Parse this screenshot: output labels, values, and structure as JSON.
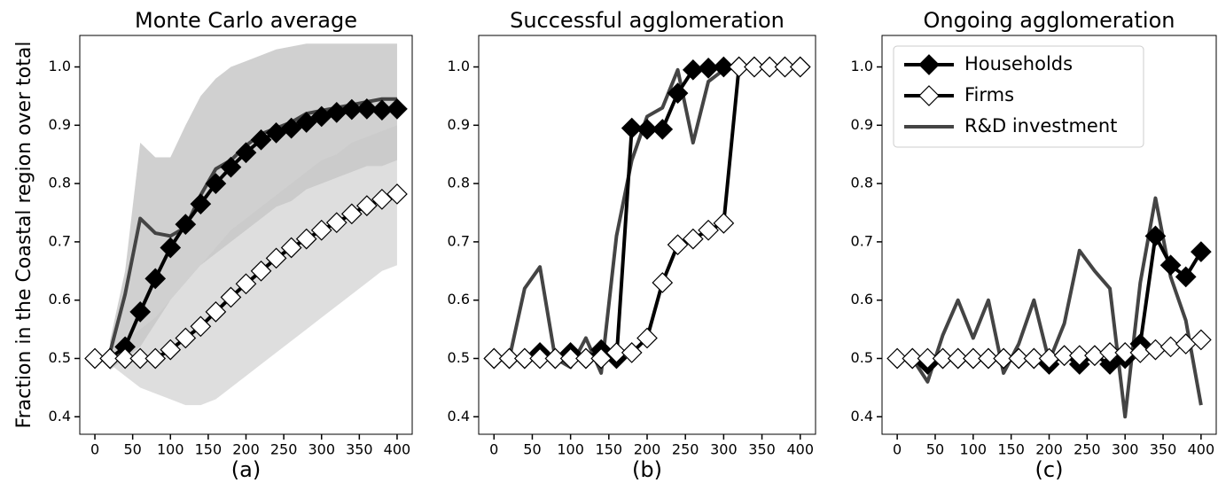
{
  "chart_data": [
    {
      "type": "line",
      "title": "Monte Carlo average",
      "ylabel": "Fraction in the Coastal region over total",
      "xlabel": "(a)",
      "x": [
        0,
        20,
        40,
        60,
        80,
        100,
        120,
        140,
        160,
        180,
        200,
        220,
        240,
        260,
        280,
        300,
        320,
        340,
        360,
        380,
        400
      ],
      "xlim": [
        -20,
        420
      ],
      "xticks": [
        0,
        50,
        100,
        150,
        200,
        250,
        300,
        350,
        400
      ],
      "ylim": [
        0.37,
        1.054
      ],
      "yticks": [
        0.4,
        0.5,
        0.6,
        0.7,
        0.8,
        0.9,
        {
          "value": 1,
          "label": "1.0"
        }
      ],
      "legend": false,
      "bands": [
        {
          "color": "#b0b0b0",
          "lower": [
            null,
            0.48,
            0.5,
            0.52,
            0.56,
            0.6,
            0.63,
            0.66,
            0.68,
            0.7,
            0.72,
            0.74,
            0.76,
            0.77,
            0.79,
            0.8,
            0.81,
            0.82,
            0.83,
            0.83,
            0.84
          ],
          "upper": [
            null,
            0.53,
            0.65,
            0.87,
            0.845,
            0.845,
            0.9,
            0.95,
            0.98,
            1.0,
            1.01,
            1.02,
            1.03,
            1.035,
            1.04,
            1.04,
            1.04,
            1.04,
            1.04,
            1.04,
            1.04
          ]
        },
        {
          "color": "#c8c8c8",
          "lower": [
            0.5,
            0.49,
            0.47,
            0.45,
            0.44,
            0.43,
            0.42,
            0.42,
            0.43,
            0.45,
            0.47,
            0.49,
            0.51,
            0.53,
            0.55,
            0.57,
            0.59,
            0.61,
            0.63,
            0.65,
            0.66
          ],
          "upper": [
            0.5,
            0.51,
            0.53,
            0.55,
            0.57,
            0.6,
            0.63,
            0.66,
            0.69,
            0.72,
            0.74,
            0.76,
            0.78,
            0.8,
            0.82,
            0.84,
            0.85,
            0.87,
            0.88,
            0.89,
            0.9
          ]
        }
      ],
      "series": [
        {
          "name": "Households",
          "color": "#000000",
          "marker_fill": "#000000",
          "values": [
            null,
            0.5,
            0.52,
            0.58,
            0.637,
            0.69,
            0.73,
            0.765,
            0.8,
            0.828,
            0.853,
            0.875,
            0.887,
            0.895,
            0.905,
            0.915,
            0.922,
            0.927,
            0.928,
            0.926,
            0.928
          ]
        },
        {
          "name": "Firms",
          "color": "#000000",
          "marker_fill": "#ffffff",
          "values": [
            0.5,
            0.5,
            0.5,
            0.5,
            0.5,
            0.515,
            0.535,
            0.555,
            0.58,
            0.605,
            0.628,
            0.65,
            0.672,
            0.69,
            0.705,
            0.72,
            0.733,
            0.748,
            0.762,
            0.773,
            0.782
          ]
        },
        {
          "name": "R&D investment",
          "color": "#444444",
          "marker_fill": null,
          "values": [
            null,
            0.51,
            0.61,
            0.74,
            0.715,
            0.71,
            0.725,
            0.78,
            0.825,
            0.84,
            0.865,
            0.885,
            0.895,
            0.905,
            0.92,
            0.925,
            0.93,
            0.935,
            0.94,
            0.945,
            0.945
          ]
        }
      ]
    },
    {
      "type": "line",
      "title": "Successful agglomeration",
      "xlabel": "(b)",
      "x": [
        0,
        20,
        40,
        60,
        80,
        100,
        120,
        140,
        160,
        180,
        200,
        220,
        240,
        260,
        280,
        300,
        320,
        340,
        360,
        380,
        400
      ],
      "xlim": [
        -20,
        420
      ],
      "xticks": [
        0,
        50,
        100,
        150,
        200,
        250,
        300,
        350,
        400
      ],
      "ylim": [
        0.37,
        1.054
      ],
      "yticks": [
        0.4,
        0.5,
        0.6,
        0.7,
        0.8,
        0.9,
        {
          "value": 1,
          "label": "1.0"
        }
      ],
      "legend": false,
      "series": [
        {
          "name": "Households",
          "color": "#000000",
          "marker_fill": "#000000",
          "values": [
            0.5,
            0.5,
            0.5,
            0.51,
            0.5,
            0.51,
            0.5,
            0.515,
            0.5,
            0.895,
            0.893,
            0.893,
            0.955,
            0.995,
            0.998,
            1.0,
            1.0,
            1.0,
            1.0,
            1.0,
            1.0
          ]
        },
        {
          "name": "Firms",
          "color": "#000000",
          "marker_fill": "#ffffff",
          "values": [
            0.5,
            0.5,
            0.5,
            0.5,
            0.5,
            0.5,
            0.5,
            0.5,
            0.51,
            0.51,
            0.535,
            0.63,
            0.695,
            0.705,
            0.72,
            0.732,
            1.0,
            1.0,
            1.0,
            1.0,
            1.0
          ]
        },
        {
          "name": "R&D investment",
          "color": "#444444",
          "marker_fill": null,
          "values": [
            null,
            0.5,
            0.62,
            0.657,
            0.5,
            0.485,
            0.535,
            0.475,
            0.71,
            0.84,
            0.915,
            0.93,
            0.995,
            0.87,
            0.975,
            0.995,
            1.0,
            1.0,
            1.0,
            1.0,
            1.0
          ]
        }
      ]
    },
    {
      "type": "line",
      "title": "Ongoing agglomeration",
      "xlabel": "(c)",
      "x": [
        0,
        20,
        40,
        60,
        80,
        100,
        120,
        140,
        160,
        180,
        200,
        220,
        240,
        260,
        280,
        300,
        320,
        340,
        360,
        380,
        400
      ],
      "xlim": [
        -20,
        420
      ],
      "xticks": [
        0,
        50,
        100,
        150,
        200,
        250,
        300,
        350,
        400
      ],
      "ylim": [
        0.37,
        1.054
      ],
      "yticks": [
        0.4,
        0.5,
        0.6,
        0.7,
        0.8,
        0.9,
        {
          "value": 1,
          "label": "1.0"
        }
      ],
      "legend": true,
      "legend_position": "upper-left",
      "series": [
        {
          "name": "Households",
          "color": "#000000",
          "marker_fill": "#000000",
          "values": [
            null,
            0.5,
            0.49,
            0.5,
            0.5,
            0.5,
            0.5,
            0.5,
            0.5,
            0.5,
            0.49,
            0.505,
            0.49,
            0.505,
            0.49,
            0.5,
            0.525,
            0.71,
            0.66,
            0.64,
            0.683
          ]
        },
        {
          "name": "Firms",
          "color": "#000000",
          "marker_fill": "#ffffff",
          "values": [
            0.5,
            0.5,
            0.5,
            0.5,
            0.5,
            0.5,
            0.5,
            0.5,
            0.5,
            0.5,
            0.5,
            0.505,
            0.505,
            0.505,
            0.51,
            0.51,
            0.51,
            0.515,
            0.52,
            0.525,
            0.532
          ]
        },
        {
          "name": "R&D investment",
          "color": "#444444",
          "marker_fill": null,
          "values": [
            null,
            0.5,
            0.46,
            0.54,
            0.6,
            0.535,
            0.6,
            0.475,
            0.525,
            0.6,
            0.495,
            0.56,
            0.685,
            0.65,
            0.62,
            0.4,
            0.63,
            0.775,
            0.64,
            0.565,
            0.42
          ]
        }
      ]
    }
  ]
}
